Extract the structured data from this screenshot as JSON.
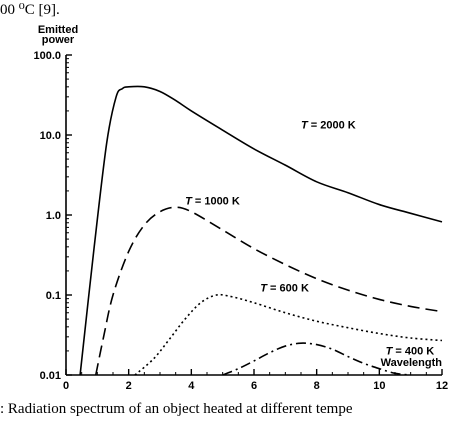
{
  "caption_top": "00 ⁰C [9].",
  "caption_bottom": ": Radiation spectrum of an object heated at different tempe",
  "chart_data": {
    "type": "line",
    "ylabel": "Emitted\npower",
    "xlabel": "Wavelength",
    "xlim": [
      0,
      12
    ],
    "ylim": [
      0.01,
      100.0
    ],
    "yscale": "log",
    "x_ticks": [
      0,
      2,
      4,
      6,
      8,
      10,
      12
    ],
    "y_ticks": [
      "0.01",
      "0.1",
      "1.0",
      "10.0",
      "100.0"
    ],
    "series": [
      {
        "name": "T = 2000 K",
        "style": "solid",
        "x": [
          0.45,
          0.9,
          1.3,
          1.6,
          1.8,
          2.0,
          2.5,
          3.0,
          3.5,
          4.0,
          5.0,
          6.0,
          7.0,
          8.0,
          9.0,
          10.0,
          11.0,
          12.0
        ],
        "y": [
          0.01,
          0.4,
          8.0,
          30,
          38,
          40,
          40,
          35,
          27,
          20,
          11.5,
          6.7,
          4.2,
          2.6,
          1.9,
          1.35,
          1.05,
          0.82
        ]
      },
      {
        "name": "T = 1000 K",
        "style": "dashed",
        "x": [
          0.95,
          1.2,
          1.5,
          2.0,
          2.5,
          3.0,
          3.5,
          4.0,
          5.0,
          6.0,
          7.0,
          8.0,
          9.0,
          10.0,
          11.0,
          12.0
        ],
        "y": [
          0.01,
          0.03,
          0.1,
          0.35,
          0.75,
          1.1,
          1.25,
          1.1,
          0.65,
          0.38,
          0.24,
          0.16,
          0.115,
          0.088,
          0.072,
          0.062
        ]
      },
      {
        "name": "T = 600 K",
        "style": "dotted",
        "x": [
          2.2,
          2.8,
          3.3,
          3.8,
          4.3,
          4.8,
          5.3,
          6.0,
          7.0,
          8.0,
          9.0,
          10.0,
          11.0,
          12.0
        ],
        "y": [
          0.01,
          0.016,
          0.028,
          0.05,
          0.08,
          0.1,
          0.095,
          0.08,
          0.06,
          0.047,
          0.039,
          0.033,
          0.029,
          0.027
        ]
      },
      {
        "name": "T = 400 K",
        "style": "dashdot",
        "x": [
          5.0,
          5.5,
          6.0,
          6.5,
          7.0,
          7.5,
          8.0,
          8.5,
          9.0,
          9.5,
          10.0,
          10.5,
          11.0
        ],
        "y": [
          0.01,
          0.012,
          0.015,
          0.019,
          0.023,
          0.025,
          0.024,
          0.021,
          0.017,
          0.014,
          0.012,
          0.0105,
          0.01
        ]
      }
    ],
    "annotations": [
      {
        "text": "T = 2000 K",
        "x": 7.5,
        "y": 12
      },
      {
        "text": "T = 1000 K",
        "x": 3.8,
        "y": 1.35
      },
      {
        "text": "T = 600 K",
        "x": 6.2,
        "y": 0.11
      },
      {
        "text": "T = 400 K",
        "x": 10.2,
        "y": 0.018
      }
    ]
  }
}
